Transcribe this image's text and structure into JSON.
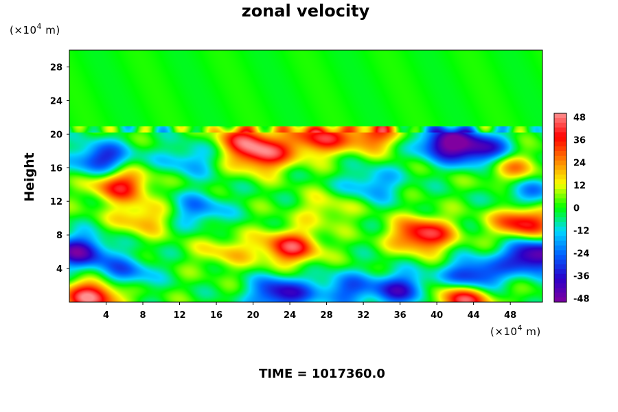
{
  "chart_data": {
    "type": "heatmap",
    "title": "zonal velocity",
    "ylabel": "Height",
    "x_unit_prefix": "(×10",
    "x_unit_exp": "4",
    "x_unit_suffix": " m)",
    "y_unit_prefix": "(×10",
    "y_unit_exp": "4",
    "y_unit_suffix": " m)",
    "xlim": [
      0,
      51.5
    ],
    "ylim": [
      0,
      30
    ],
    "x_ticks": [
      4,
      8,
      12,
      16,
      20,
      24,
      28,
      32,
      36,
      40,
      44,
      48
    ],
    "y_ticks": [
      4,
      8,
      12,
      16,
      20,
      24,
      28
    ],
    "colorbar": {
      "min": -50,
      "max": 50,
      "ticks": [
        48,
        36,
        24,
        12,
        0,
        -12,
        -24,
        -36,
        -48
      ],
      "colors": [
        "#8000a0",
        "#2a00c8",
        "#0060ff",
        "#00d8ff",
        "#00ff00",
        "#f8ff00",
        "#ff8000",
        "#ff0000",
        "#ff9090"
      ]
    },
    "features": [
      {
        "x": 38.5,
        "y": 8,
        "value": 45
      },
      {
        "x": 24,
        "y": 6.5,
        "value": 40
      },
      {
        "x": 49.5,
        "y": 9.5,
        "value": 42
      },
      {
        "x": 2.5,
        "y": 0.7,
        "value": 48
      },
      {
        "x": 43,
        "y": 0.5,
        "value": 46
      },
      {
        "x": 21,
        "y": 17.5,
        "value": 40
      },
      {
        "x": 27,
        "y": 19.5,
        "value": 38
      },
      {
        "x": 33,
        "y": 20,
        "value": 32
      },
      {
        "x": 5.5,
        "y": 14,
        "value": 38
      },
      {
        "x": 19,
        "y": 19.5,
        "value": 30
      },
      {
        "x": 48,
        "y": 16,
        "value": 26
      },
      {
        "x": 50.5,
        "y": 5.5,
        "value": -50
      },
      {
        "x": 41,
        "y": 19,
        "value": -45
      },
      {
        "x": 45,
        "y": 18,
        "value": -38
      },
      {
        "x": 3.5,
        "y": 17,
        "value": -36
      },
      {
        "x": 1,
        "y": 6,
        "value": -42
      },
      {
        "x": 44,
        "y": 3,
        "value": -42
      },
      {
        "x": 23,
        "y": 1,
        "value": -40
      },
      {
        "x": 36,
        "y": 1.5,
        "value": -34
      },
      {
        "x": 30,
        "y": 1.5,
        "value": -25
      },
      {
        "x": 6,
        "y": 3.5,
        "value": -24
      },
      {
        "x": 14,
        "y": 11,
        "value": -22
      },
      {
        "x": 33,
        "y": 14,
        "value": -20
      },
      {
        "x": 50,
        "y": 13,
        "value": -22
      },
      {
        "x": 13,
        "y": 17,
        "value": -18
      },
      {
        "x": 8,
        "y": 10,
        "value": 22
      },
      {
        "x": 28,
        "y": 11,
        "value": 14
      },
      {
        "x": 17,
        "y": 6,
        "value": 16
      }
    ]
  },
  "footer": {
    "time_label": "TIME = 1017360.0"
  }
}
